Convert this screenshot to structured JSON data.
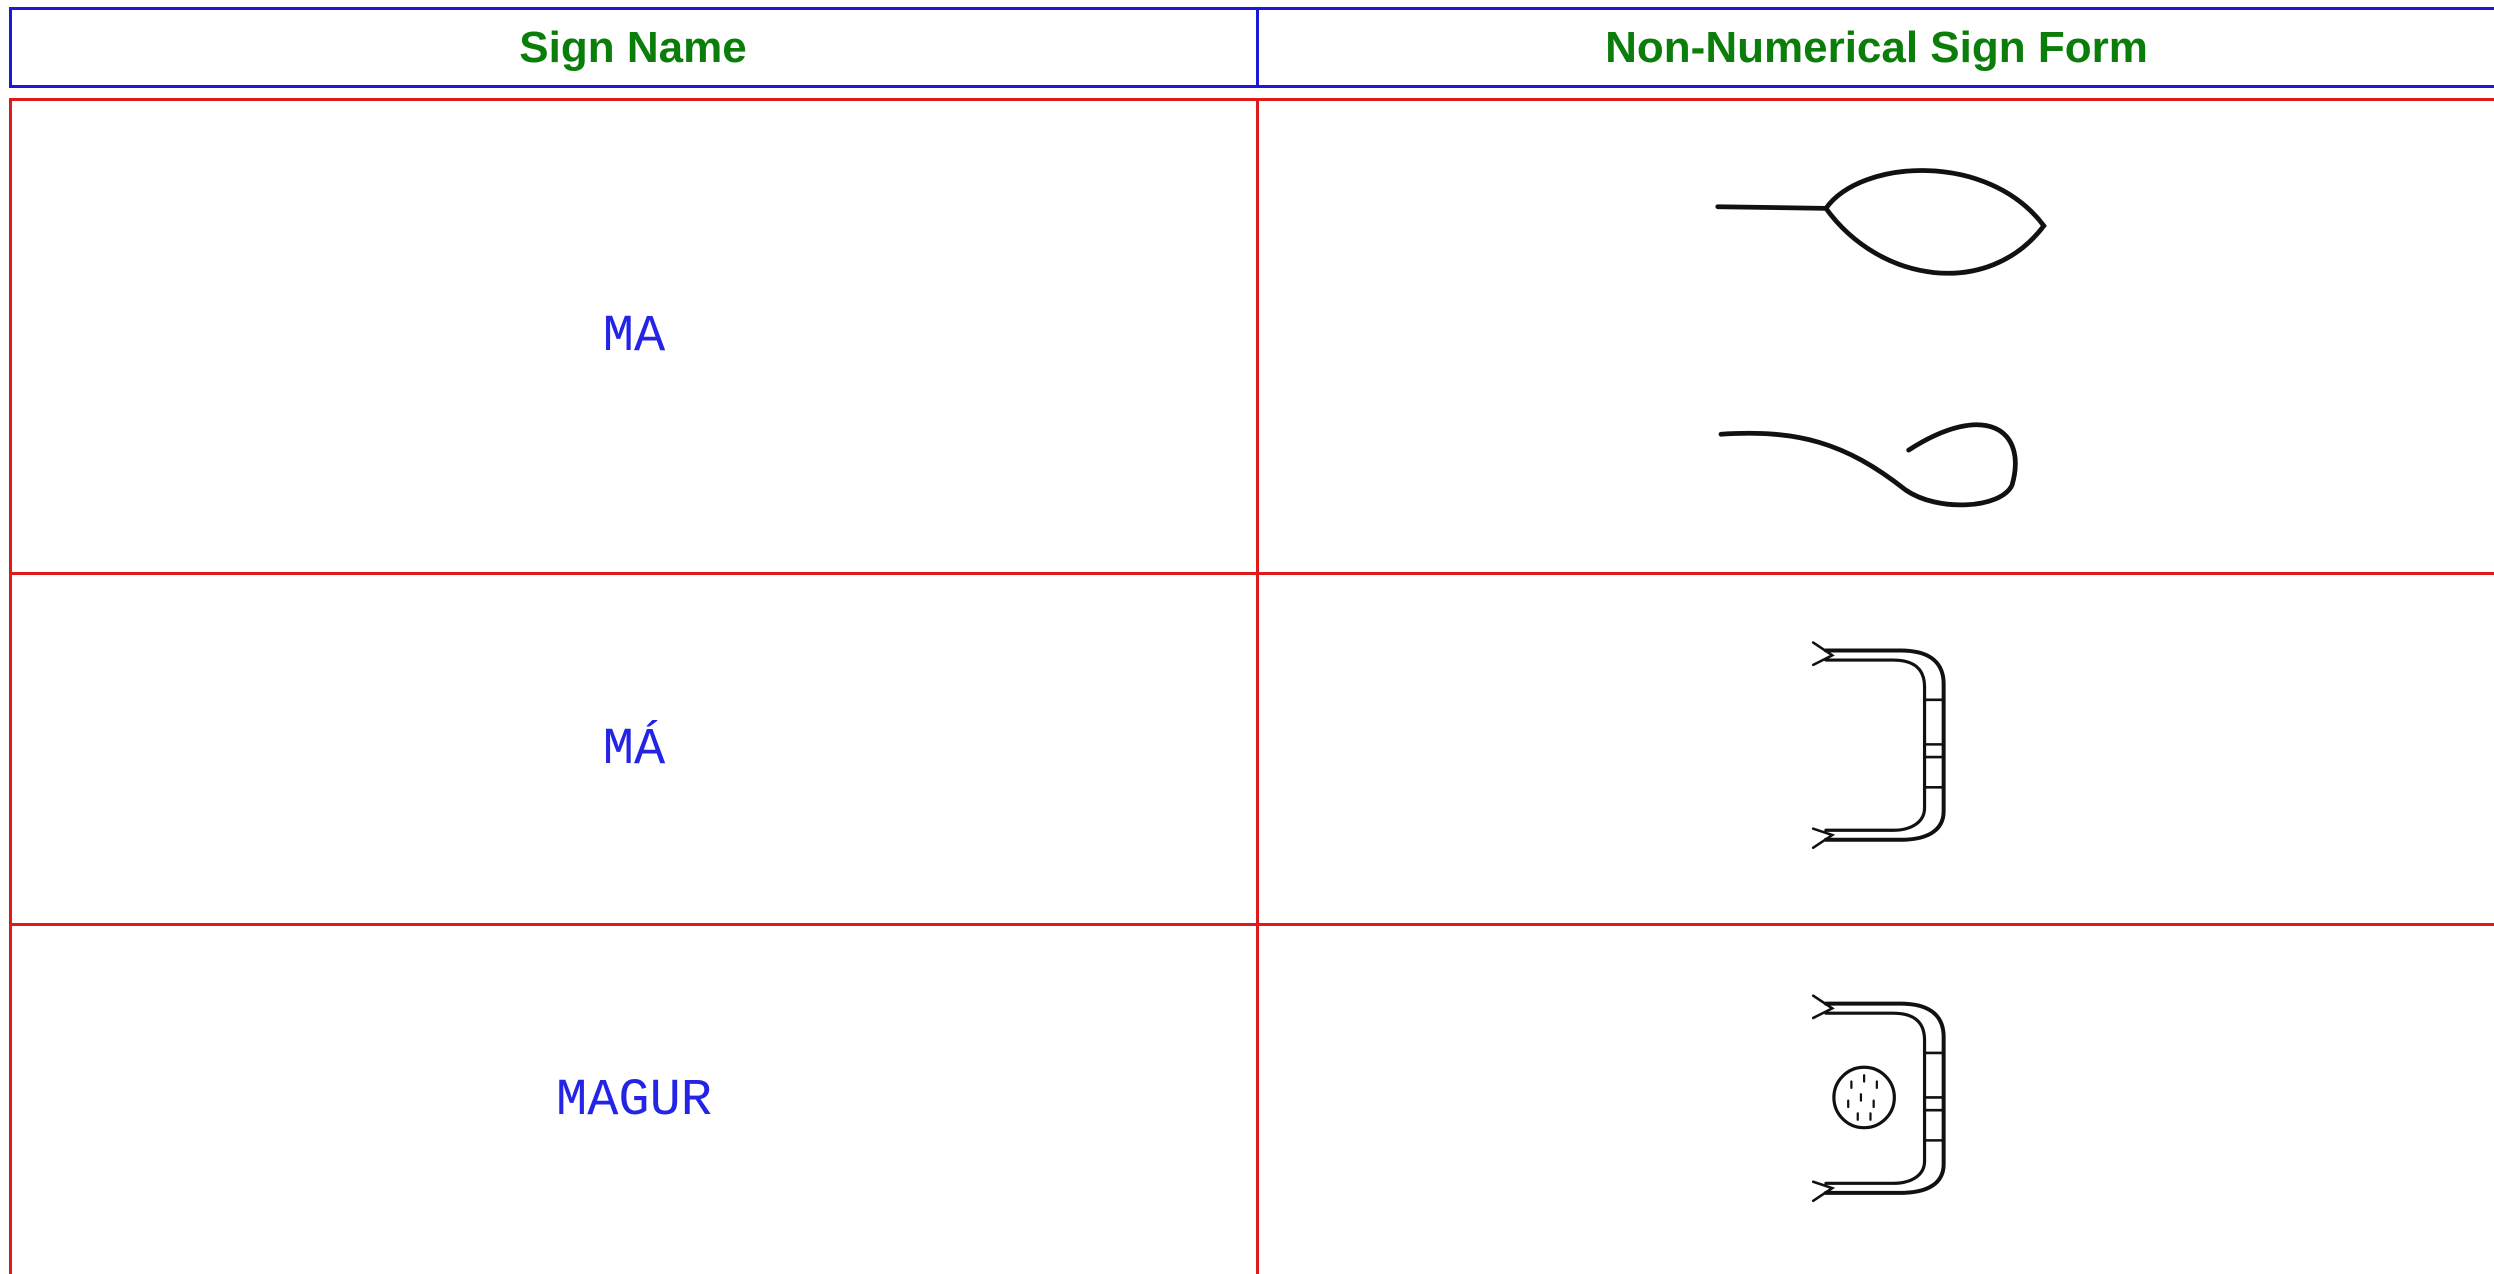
{
  "table": {
    "columns": [
      "Sign Name",
      "Non-Numerical Sign Form"
    ],
    "rows": [
      [
        "MA"
      ],
      [
        "MÁ"
      ],
      [
        "MAGUR"
      ]
    ]
  }
}
